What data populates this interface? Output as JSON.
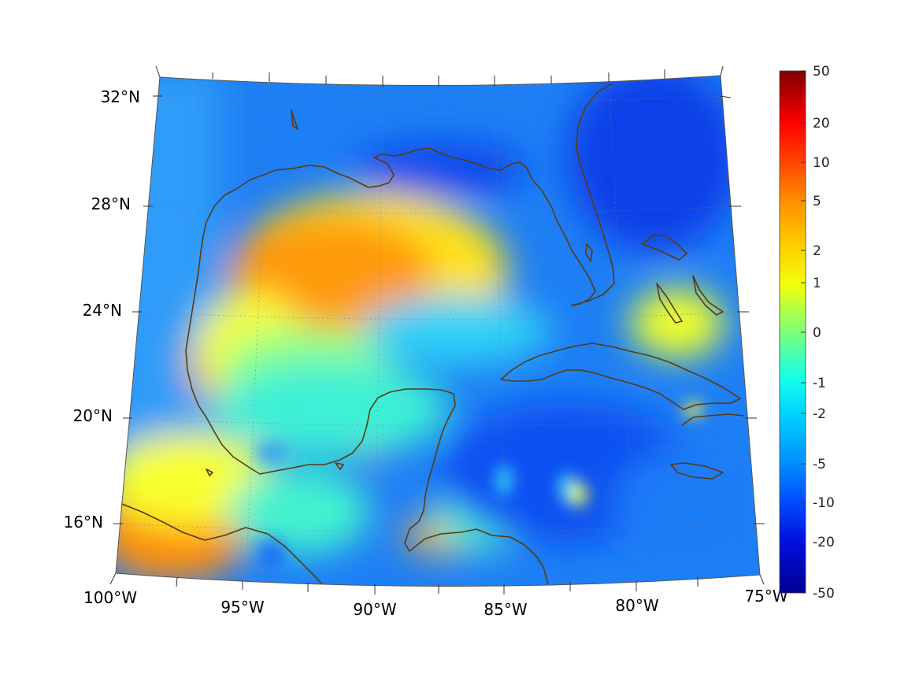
{
  "map": {
    "region": "Gulf of Mexico and Caribbean",
    "projection": "conic (lat/lon grid)",
    "lon_range": [
      "100°W",
      "75°W"
    ],
    "lat_range": [
      "14°N",
      "33°N"
    ],
    "lon_ticks": [
      "100°W",
      "95°W",
      "90°W",
      "85°W",
      "80°W",
      "75°W"
    ],
    "lat_ticks": [
      "32°N",
      "28°N",
      "24°N",
      "20°N",
      "16°N"
    ],
    "grid": "dotted graticule",
    "coastline_color": "#5a3a12"
  },
  "colorbar": {
    "position": "right",
    "colormap": "jet",
    "ticks": [
      "50",
      "20",
      "10",
      "5",
      "2",
      "1",
      "0",
      "-1",
      "-2",
      "-5",
      "-10",
      "-20",
      "-50"
    ],
    "max": 50,
    "min": -50
  }
}
